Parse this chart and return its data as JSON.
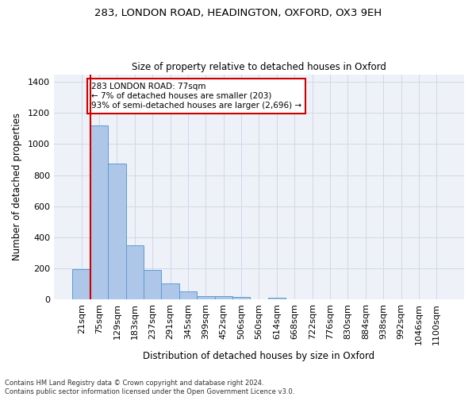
{
  "title_line1": "283, LONDON ROAD, HEADINGTON, OXFORD, OX3 9EH",
  "title_line2": "Size of property relative to detached houses in Oxford",
  "xlabel": "Distribution of detached houses by size in Oxford",
  "ylabel": "Number of detached properties",
  "categories": [
    "21sqm",
    "75sqm",
    "129sqm",
    "183sqm",
    "237sqm",
    "291sqm",
    "345sqm",
    "399sqm",
    "452sqm",
    "506sqm",
    "560sqm",
    "614sqm",
    "668sqm",
    "722sqm",
    "776sqm",
    "830sqm",
    "884sqm",
    "938sqm",
    "992sqm",
    "1046sqm",
    "1100sqm"
  ],
  "bar_heights": [
    195,
    1120,
    875,
    350,
    190,
    100,
    52,
    22,
    20,
    15,
    0,
    12,
    0,
    0,
    0,
    0,
    0,
    0,
    0,
    0,
    0
  ],
  "bar_color": "#aec6e8",
  "bar_edge_color": "#5b9bd5",
  "grid_color": "#d0d8e8",
  "background_color": "#eef2f8",
  "vline_color": "#cc0000",
  "annotation_text": "283 LONDON ROAD: 77sqm\n← 7% of detached houses are smaller (203)\n93% of semi-detached houses are larger (2,696) →",
  "annotation_box_color": "#ffffff",
  "annotation_box_edge_color": "#cc0000",
  "ylim": [
    0,
    1450
  ],
  "yticks": [
    0,
    200,
    400,
    600,
    800,
    1000,
    1200,
    1400
  ],
  "footnote": "Contains HM Land Registry data © Crown copyright and database right 2024.\nContains public sector information licensed under the Open Government Licence v3.0."
}
